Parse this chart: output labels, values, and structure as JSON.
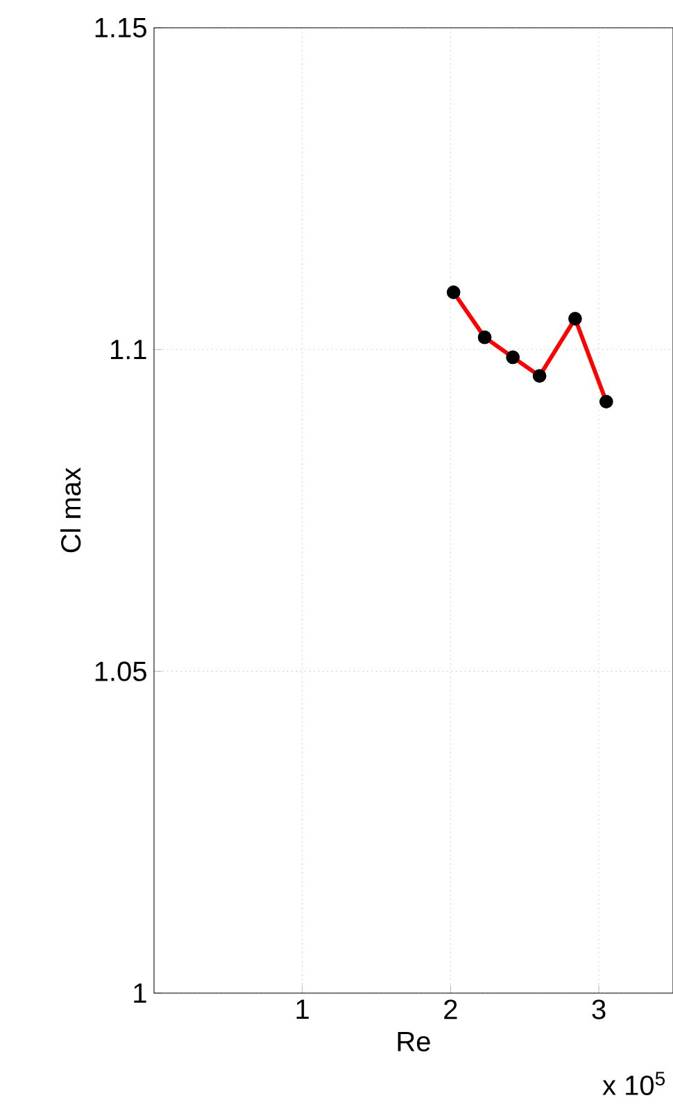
{
  "chart_data": {
    "type": "line",
    "xlabel": "Re",
    "ylabel": "Cl max",
    "annotations": [
      "x 10$^{5}$"
    ],
    "x": [
      2.02,
      2.23,
      2.42,
      2.6,
      2.84,
      3.05
    ],
    "series": [
      {
        "color": "#ff0000",
        "values": [
          1.1089,
          1.1019,
          1.0988,
          1.0959,
          1.1048,
          1.0919
        ]
      }
    ],
    "xlim": [
      0,
      3.5
    ],
    "ylim": [
      1.0,
      1.15
    ],
    "xticks": [
      1,
      2,
      3
    ],
    "yticks": [
      1,
      1.05,
      1.1,
      1.15
    ],
    "grid": true,
    "marker": "circle",
    "line_style": "solid"
  }
}
